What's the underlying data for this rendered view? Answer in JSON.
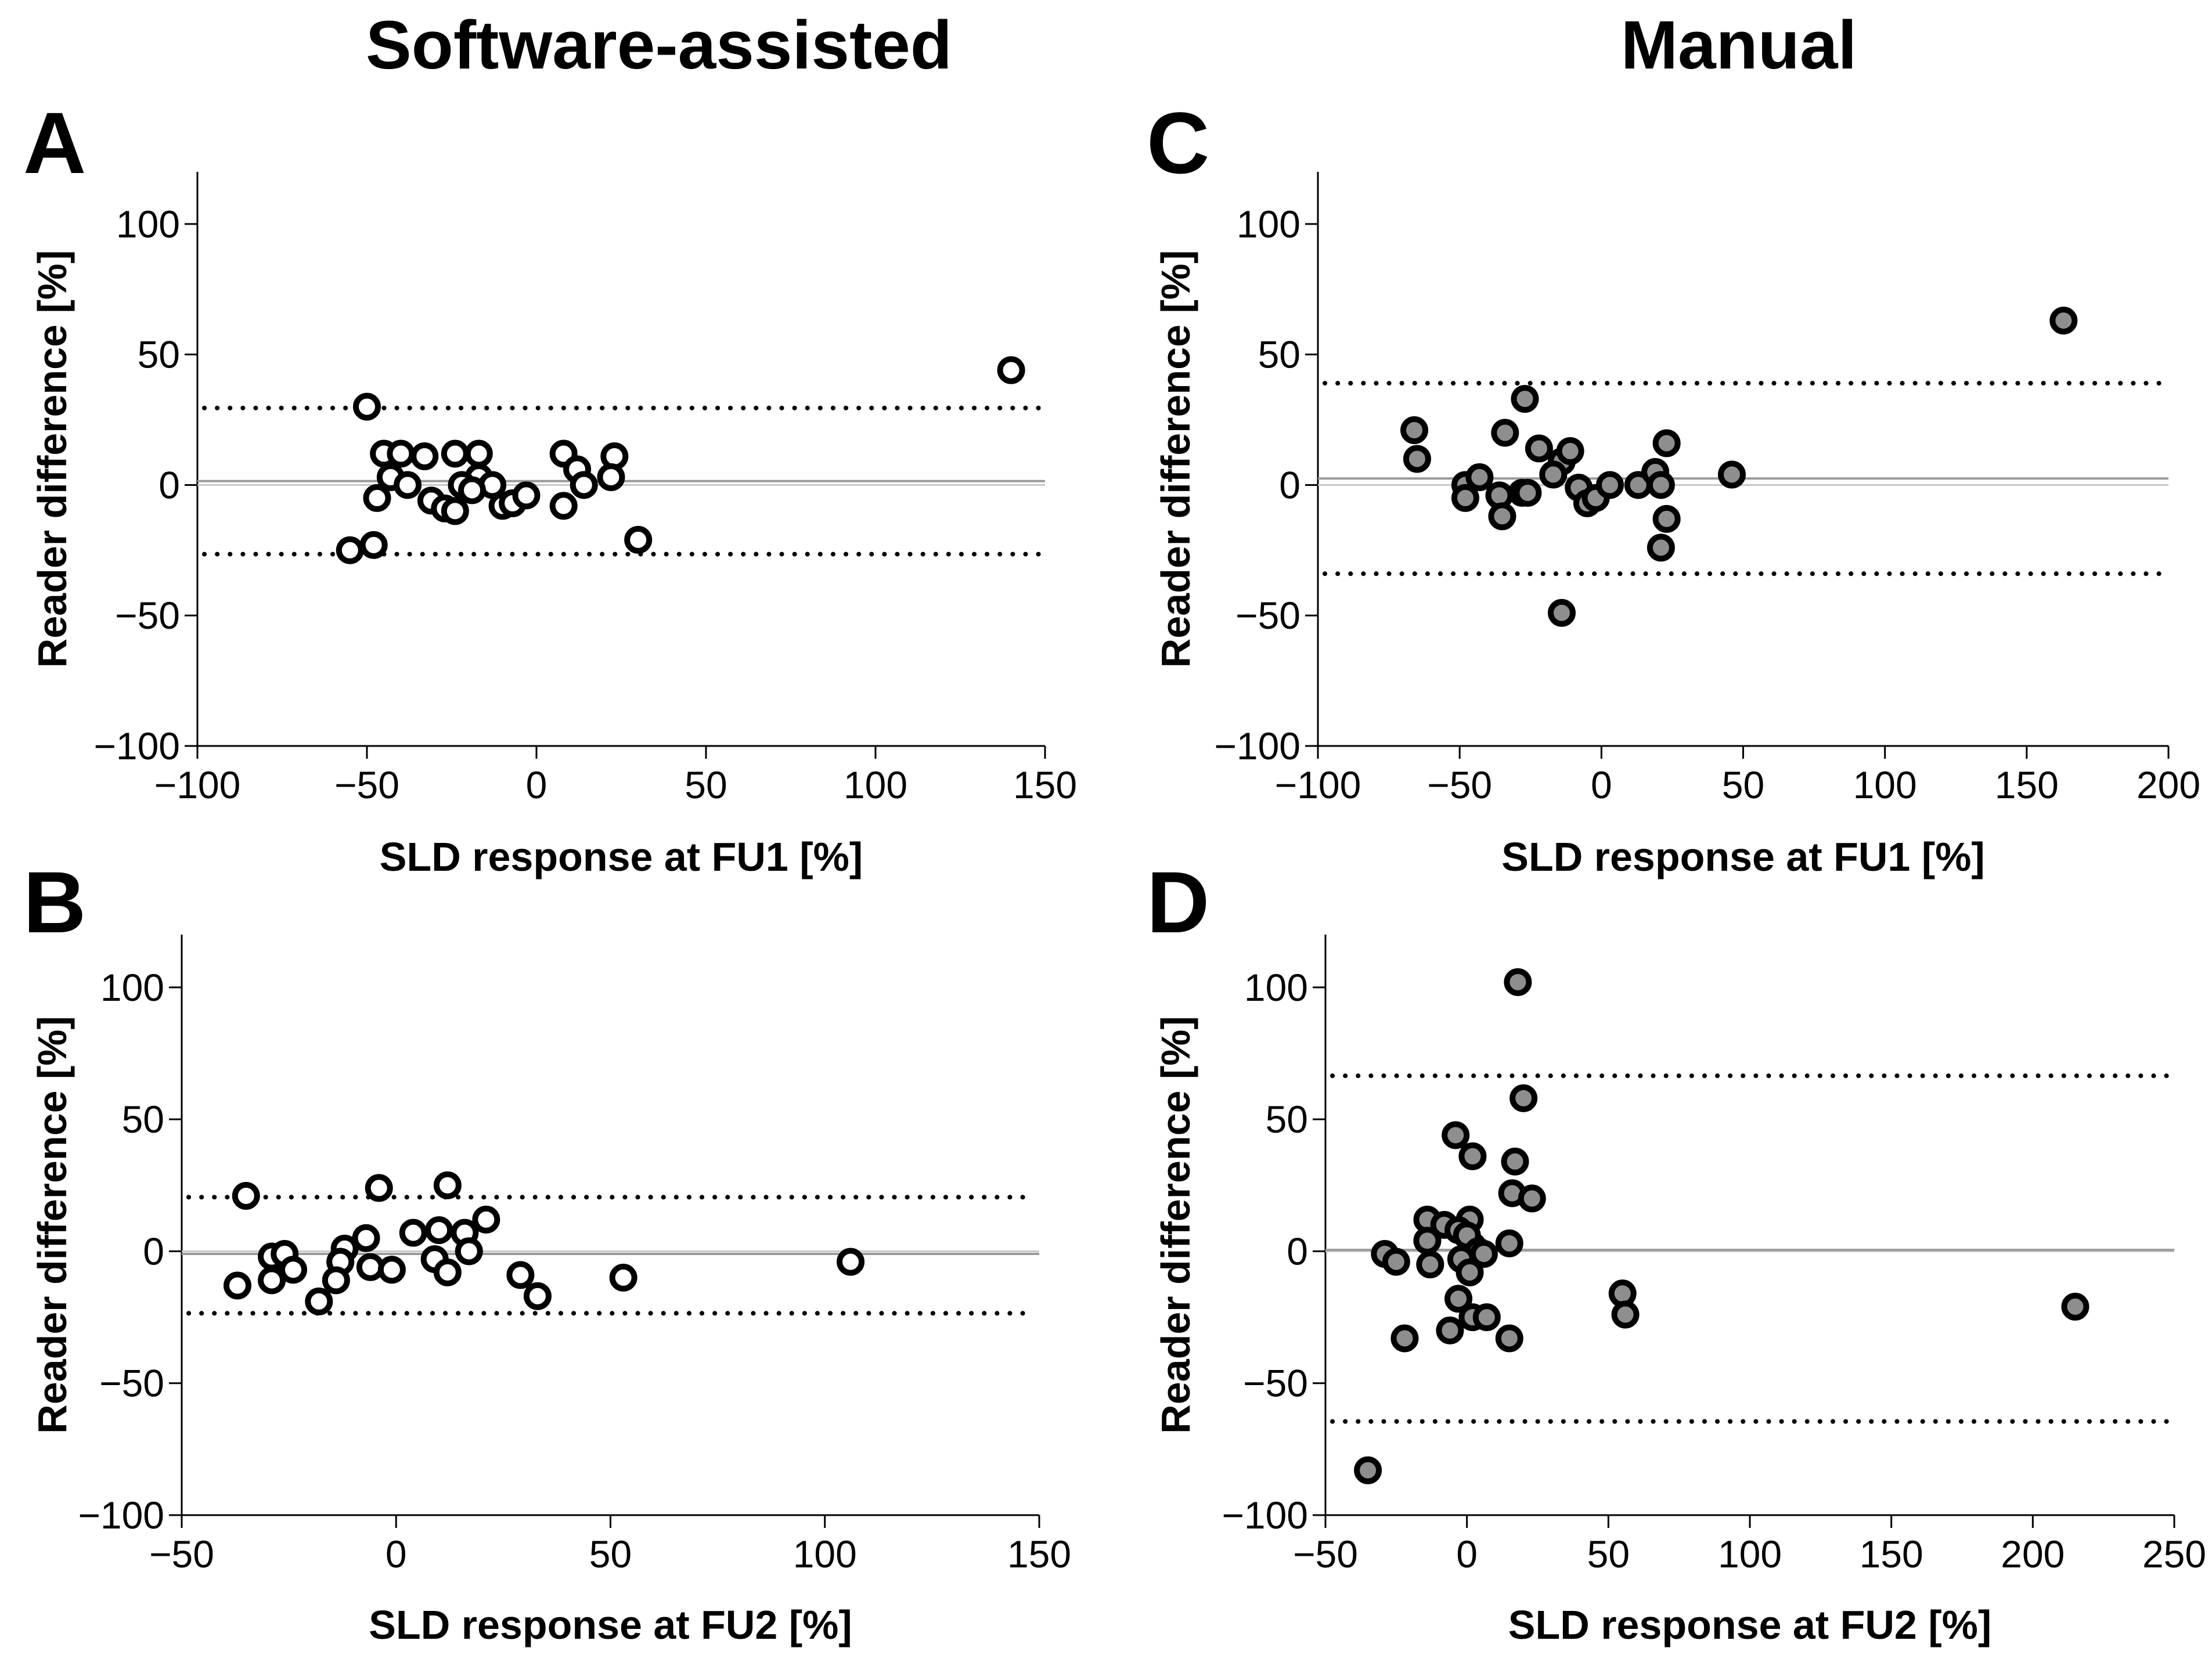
{
  "column_titles": {
    "left": "Software-assisted",
    "right": "Manual"
  },
  "chart_data": [
    {
      "panel": "A",
      "type": "scatter",
      "title": "Software-assisted",
      "xlabel": "SLD response at FU1 [%]",
      "ylabel": "Reader difference [%]",
      "xlim": [
        -100,
        150
      ],
      "ylim": [
        -100,
        120
      ],
      "xticks": [
        -100,
        -50,
        0,
        50,
        100,
        150
      ],
      "xtick_labels": [
        "−100",
        "−50",
        "0",
        "50",
        "100",
        "150"
      ],
      "yticks": [
        -100,
        -50,
        0,
        50,
        100
      ],
      "ytick_labels": [
        "−100",
        "−50",
        "0",
        "50",
        "100"
      ],
      "marker": "open",
      "mean": 1.5,
      "loa_upper": 29.5,
      "loa_lower": -26.5,
      "x": [
        -50,
        -45,
        -40,
        -33,
        -24,
        -17,
        8,
        12,
        23,
        -43,
        -38,
        -17,
        -22,
        -13,
        -19,
        -47,
        -31,
        -27,
        -24,
        -10,
        -7,
        -3,
        8,
        14,
        22,
        -55,
        -48,
        30,
        140
      ],
      "y": [
        30,
        12,
        12,
        11,
        12,
        12,
        12,
        6,
        11,
        3,
        0,
        3,
        0,
        0,
        -2,
        -5,
        -6,
        -9,
        -10,
        -8,
        -7,
        -4,
        -8,
        0,
        3,
        -25,
        -23,
        -21,
        44
      ]
    },
    {
      "panel": "B",
      "type": "scatter",
      "title": "Software-assisted",
      "xlabel": "SLD response at FU2  [%]",
      "ylabel": "Reader difference [%]",
      "xlim": [
        -50,
        150
      ],
      "ylim": [
        -100,
        120
      ],
      "xticks": [
        -50,
        0,
        50,
        100,
        150
      ],
      "xtick_labels": [
        "−50",
        "0",
        "50",
        "100",
        "150"
      ],
      "yticks": [
        -100,
        -50,
        0,
        50,
        100
      ],
      "ytick_labels": [
        "−100",
        "−50",
        "0",
        "50",
        "100"
      ],
      "marker": "open",
      "mean": -1,
      "loa_upper": 20.5,
      "loa_lower": -23.5,
      "x": [
        -35,
        -4,
        12,
        -37,
        -29,
        -26,
        -24,
        -29,
        -12,
        -13,
        -7,
        -6,
        -13,
        -14,
        -18,
        -1,
        4,
        10,
        16,
        21,
        9,
        12,
        17,
        29,
        33,
        53,
        106
      ],
      "y": [
        21,
        24,
        25,
        -13,
        -2,
        -1,
        -7,
        -11,
        1,
        -4,
        5,
        -6,
        -4,
        -11,
        -19,
        -7,
        7,
        8,
        7,
        12,
        -3,
        -8,
        0,
        -9,
        -17,
        -10,
        -4
      ]
    },
    {
      "panel": "C",
      "type": "scatter",
      "title": "Manual",
      "xlabel": "SLD response at FU1 [%]",
      "ylabel": "Reader difference [%]",
      "xlim": [
        -100,
        200
      ],
      "ylim": [
        -100,
        120
      ],
      "xticks": [
        -100,
        -50,
        0,
        50,
        100,
        150,
        200
      ],
      "xtick_labels": [
        "−100",
        "−50",
        "0",
        "50",
        "100",
        "150",
        "200"
      ],
      "yticks": [
        -100,
        -50,
        0,
        50,
        100
      ],
      "ytick_labels": [
        "−100",
        "−50",
        "0",
        "50",
        "100"
      ],
      "marker": "filled",
      "mean": 2.5,
      "loa_upper": 39,
      "loa_lower": -34,
      "x": [
        -66,
        -65,
        -27,
        -34,
        -22,
        -14,
        -11,
        -48,
        -48,
        -43,
        -36,
        -35,
        -28,
        -26,
        -17,
        -8,
        -5,
        -2,
        3,
        13,
        19,
        21,
        23,
        23,
        21,
        46,
        -14,
        163
      ],
      "y": [
        21,
        10,
        33,
        20,
        14,
        9,
        13,
        0,
        -5,
        3,
        -4,
        -12,
        -3,
        -3,
        4,
        -1,
        -7,
        -5,
        0,
        0,
        5,
        0,
        16,
        -13,
        -24,
        4,
        -49,
        63
      ]
    },
    {
      "panel": "D",
      "type": "scatter",
      "title": "Manual",
      "xlabel": "SLD response at FU2 [%]",
      "ylabel": "Reader difference [%]",
      "xlim": [
        -50,
        250
      ],
      "ylim": [
        -100,
        120
      ],
      "xticks": [
        -50,
        0,
        50,
        100,
        150,
        200,
        250
      ],
      "xtick_labels": [
        "−50",
        "0",
        "50",
        "100",
        "150",
        "200",
        "250"
      ],
      "yticks": [
        -100,
        -50,
        0,
        50,
        100
      ],
      "ytick_labels": [
        "−100",
        "−50",
        "0",
        "50",
        "100"
      ],
      "marker": "filled",
      "mean": 0.5,
      "loa_upper": 66.5,
      "loa_lower": -64.5,
      "x": [
        18,
        20,
        -4,
        2,
        17,
        16,
        23,
        -14,
        -8,
        1,
        -14,
        -3,
        2,
        0,
        4,
        6,
        15,
        -29,
        -25,
        -13,
        -2,
        1,
        -3,
        2,
        7,
        -6,
        15,
        -22,
        55,
        56,
        -35,
        215
      ],
      "y": [
        102,
        58,
        44,
        36,
        34,
        22,
        20,
        12,
        10,
        12,
        4,
        8,
        2,
        6,
        0,
        -1,
        3,
        -1,
        -4,
        -5,
        -3,
        -8,
        -18,
        -25,
        -25,
        -30,
        -33,
        -33,
        -16,
        -24,
        -83,
        -21
      ]
    }
  ]
}
